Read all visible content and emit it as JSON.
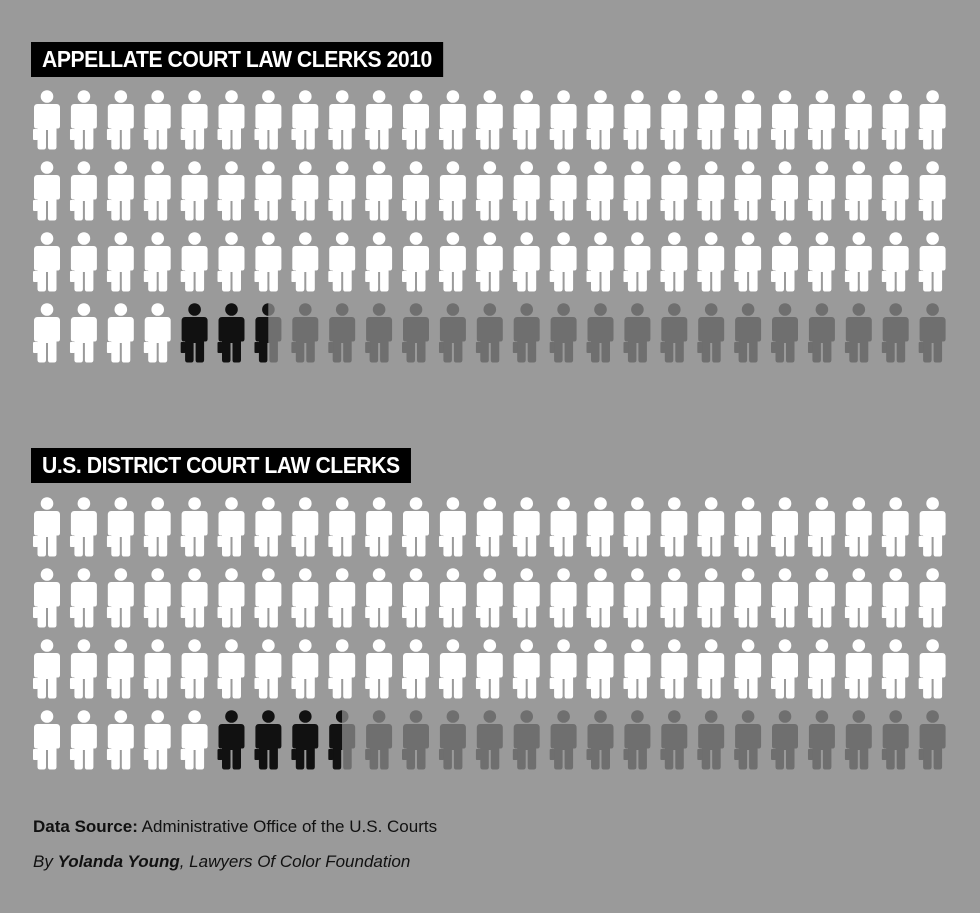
{
  "colors": {
    "background": "#9a9a9a",
    "full_icon": "#ffffff",
    "highlight_icon": "#111111",
    "remainder_icon": "#6f6f6f",
    "title_bg": "#000000"
  },
  "icon_semantics": "person-in-suit-icon",
  "chart_data": [
    {
      "type": "pictogram",
      "title": "APPELLATE COURT LAW CLERKS 2010",
      "rows": 4,
      "columns": 25,
      "total_icons": 100,
      "white_icons": 79,
      "black_icons": 2.5,
      "gray_icons": 18.5
    },
    {
      "type": "pictogram",
      "title": "U.S. DISTRICT COURT LAW CLERKS",
      "rows": 4,
      "columns": 25,
      "total_icons": 100,
      "white_icons": 80,
      "black_icons": 3.5,
      "gray_icons": 16.5
    }
  ],
  "footer": {
    "source_label": "Data Source:",
    "source_text": "Administrative Office of the U.S. Courts",
    "by_prefix": "By",
    "author": "Yolanda Young",
    "org": ", Lawyers Of Color Foundation"
  }
}
